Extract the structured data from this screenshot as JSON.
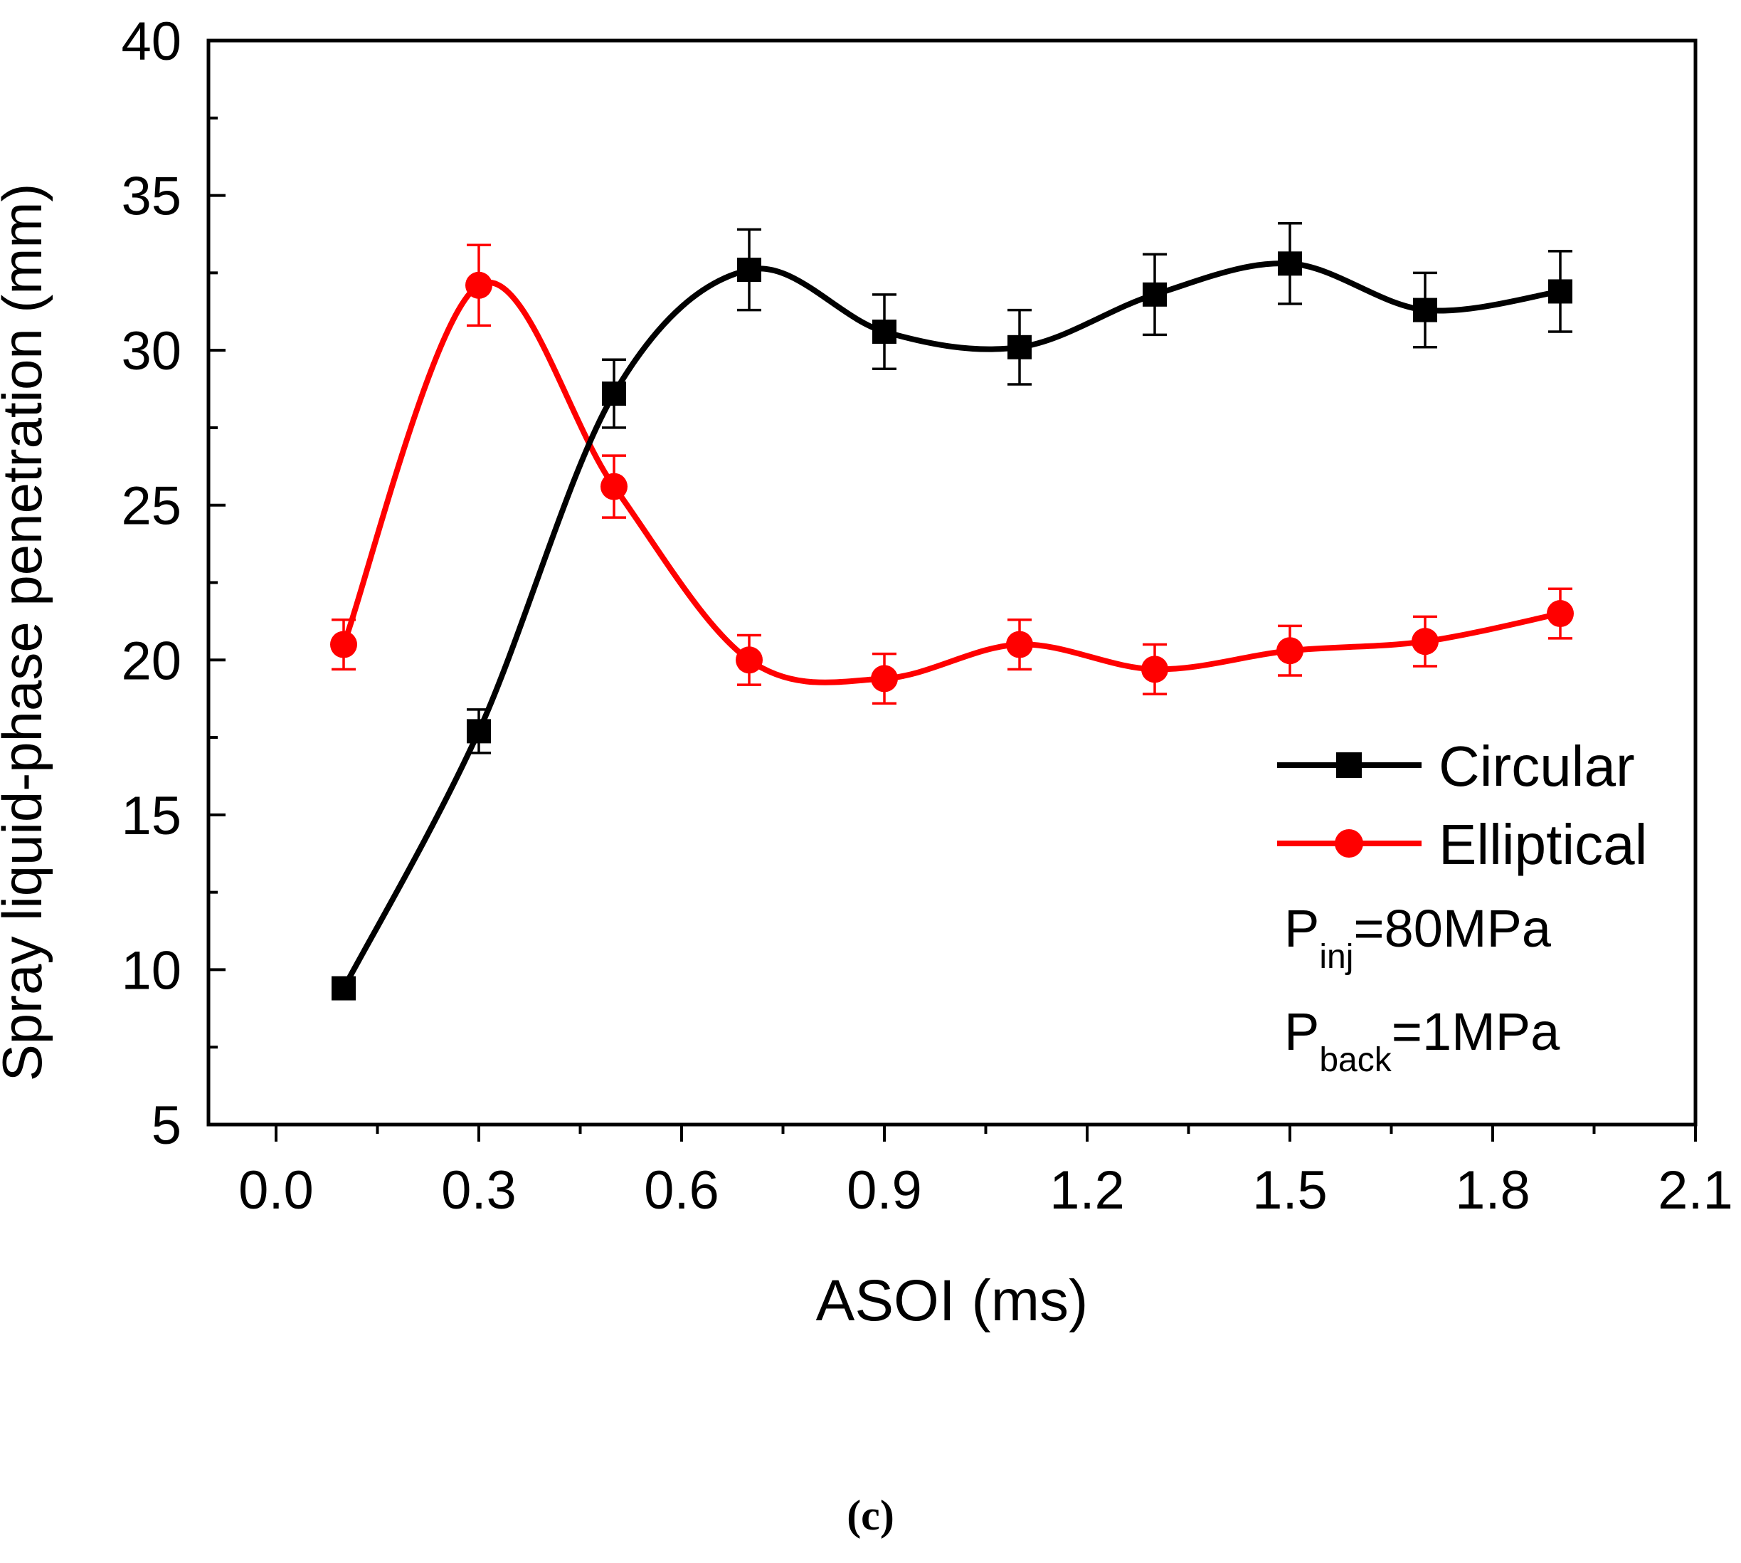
{
  "caption": "(c)",
  "chart_data": {
    "type": "line",
    "xlabel": "ASOI (ms)",
    "ylabel": "Spray liquid-phase penetration (mm)",
    "xlim": [
      -0.1,
      2.1
    ],
    "ylim": [
      5,
      40
    ],
    "xticks": [
      "0.0",
      "0.3",
      "0.6",
      "0.9",
      "1.2",
      "1.5",
      "1.8",
      "2.1"
    ],
    "yticks": [
      "5",
      "10",
      "15",
      "20",
      "25",
      "30",
      "35",
      "40"
    ],
    "grid": false,
    "legend_position": "right",
    "series": [
      {
        "name": "Circular",
        "color": "#000000",
        "marker": "square",
        "x": [
          0.1,
          0.3,
          0.5,
          0.7,
          0.9,
          1.1,
          1.3,
          1.5,
          1.7,
          1.9
        ],
        "y": [
          9.4,
          17.7,
          28.6,
          32.6,
          30.6,
          30.1,
          31.8,
          32.8,
          31.3,
          31.9
        ],
        "error": [
          0.0,
          0.7,
          1.1,
          1.3,
          1.2,
          1.2,
          1.3,
          1.3,
          1.2,
          1.3
        ]
      },
      {
        "name": "Elliptical",
        "color": "#ff0000",
        "marker": "circle",
        "x": [
          0.1,
          0.3,
          0.5,
          0.7,
          0.9,
          1.1,
          1.3,
          1.5,
          1.7,
          1.9
        ],
        "y": [
          20.5,
          32.1,
          25.6,
          20.0,
          19.4,
          20.5,
          19.7,
          20.3,
          20.6,
          21.5
        ],
        "error": [
          0.8,
          1.3,
          1.0,
          0.8,
          0.8,
          0.8,
          0.8,
          0.8,
          0.8,
          0.8
        ]
      }
    ],
    "annotations": [
      {
        "main": "P",
        "sub": "inj",
        "rest": "=80MPa"
      },
      {
        "main": "P",
        "sub": "back",
        "rest": "=1MPa"
      }
    ]
  }
}
